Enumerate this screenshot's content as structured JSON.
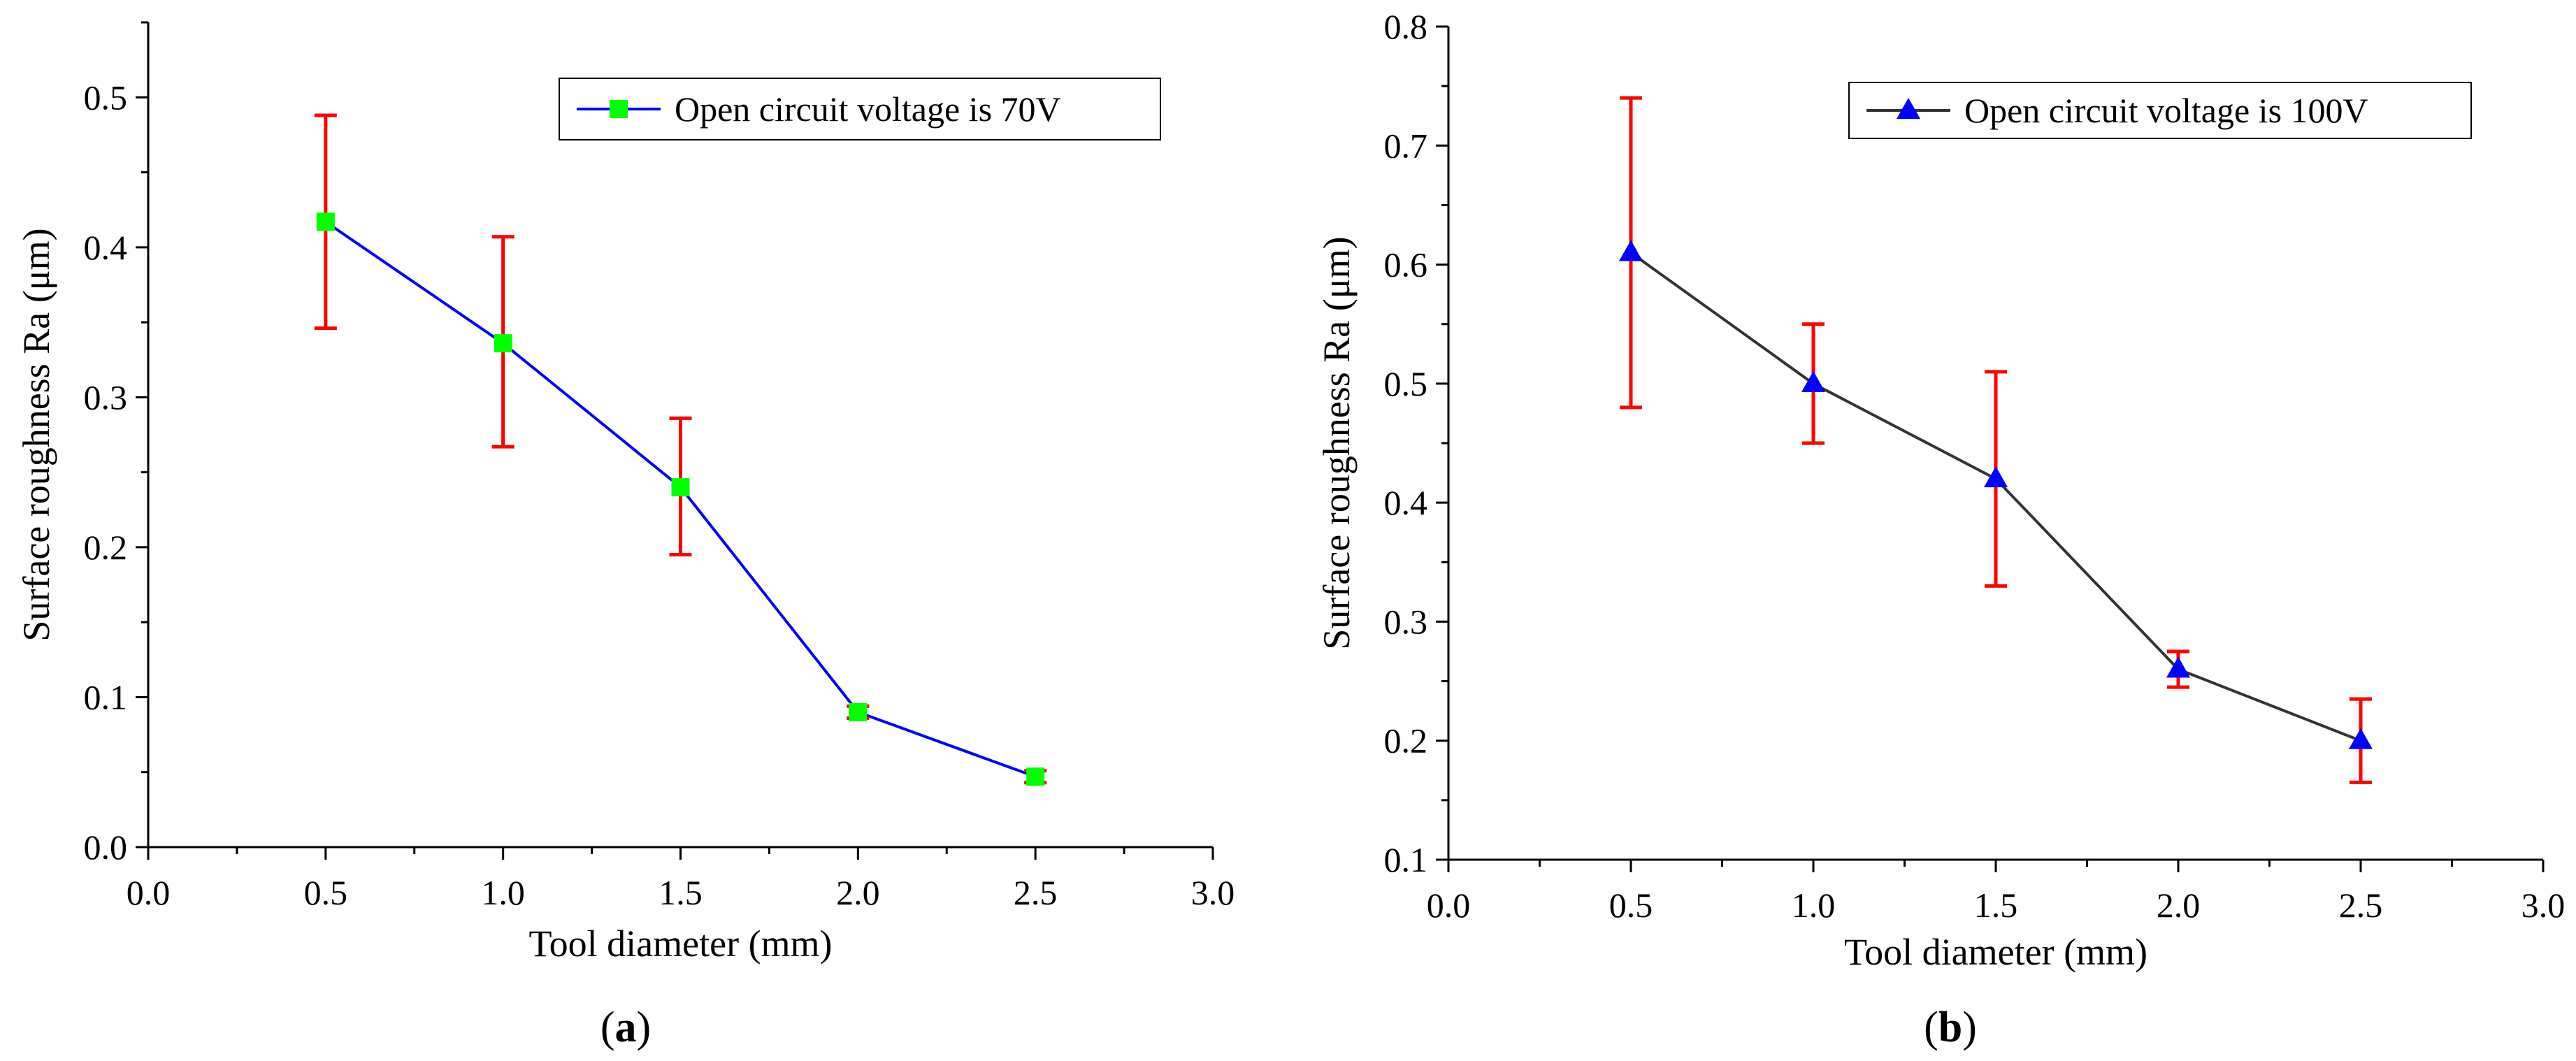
{
  "chart_data": [
    {
      "type": "line",
      "panel_label": "a",
      "xlabel": "Tool diameter (mm)",
      "ylabel": "Surface roughness Ra (μm)",
      "xlim": [
        0.0,
        3.0
      ],
      "ylim": [
        0.0,
        0.55
      ],
      "x_ticks": [
        "0.0",
        "0.5",
        "1.0",
        "1.5",
        "2.0",
        "2.5",
        "3.0"
      ],
      "y_ticks": [
        "0.0",
        "0.1",
        "0.2",
        "0.3",
        "0.4",
        "0.5"
      ],
      "grid": false,
      "legend_position": "top-right",
      "series": [
        {
          "name": "Open circuit voltage is 70V",
          "x": [
            0.5,
            1.0,
            1.5,
            2.0,
            2.5
          ],
          "y": [
            0.417,
            0.336,
            0.24,
            0.09,
            0.047
          ],
          "error_low": [
            0.346,
            0.267,
            0.195,
            0.086,
            0.043
          ],
          "error_high": [
            0.488,
            0.407,
            0.286,
            0.094,
            0.051
          ],
          "line_color": "#0000ff",
          "marker": "square",
          "marker_color": "#00ff00"
        }
      ],
      "error_bar_color": "#ff0000"
    },
    {
      "type": "line",
      "panel_label": "b",
      "xlabel": "Tool diameter (mm)",
      "ylabel": "Surface roughness Ra (μm)",
      "xlim": [
        0.0,
        3.0
      ],
      "ylim": [
        0.1,
        0.8
      ],
      "x_ticks": [
        "0.0",
        "0.5",
        "1.0",
        "1.5",
        "2.0",
        "2.5",
        "3.0"
      ],
      "y_ticks": [
        "0.1",
        "0.2",
        "0.3",
        "0.4",
        "0.5",
        "0.6",
        "0.7",
        "0.8"
      ],
      "grid": false,
      "legend_position": "top-right",
      "series": [
        {
          "name": "Open circuit voltage is 100V",
          "x": [
            0.5,
            1.0,
            1.5,
            2.0,
            2.5
          ],
          "y": [
            0.61,
            0.5,
            0.42,
            0.26,
            0.2
          ],
          "error_low": [
            0.48,
            0.45,
            0.33,
            0.245,
            0.165
          ],
          "error_high": [
            0.74,
            0.55,
            0.51,
            0.275,
            0.235
          ],
          "line_color": "#333333",
          "marker": "triangle",
          "marker_color": "#0000ff"
        }
      ],
      "error_bar_color": "#ff0000"
    }
  ]
}
